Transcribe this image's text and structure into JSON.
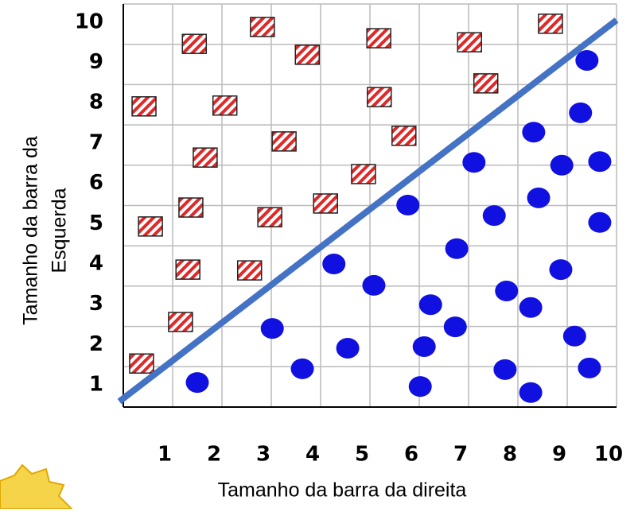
{
  "chart_data": {
    "type": "scatter",
    "x_label": "Tamanho da barra da direita",
    "y_label_lines": [
      "Tamanho da barra da",
      "Esquerda"
    ],
    "xlim": [
      0,
      10
    ],
    "ylim": [
      0,
      10
    ],
    "xticks": [
      1,
      2,
      3,
      4,
      5,
      6,
      7,
      8,
      9,
      10
    ],
    "yticks": [
      1,
      2,
      3,
      4,
      5,
      6,
      7,
      8,
      9,
      10
    ],
    "grid": true,
    "series": [
      {
        "marker": "square",
        "color": "#e02828",
        "x": [
          0.37,
          1.16,
          1.31,
          2.56,
          0.55,
          1.37,
          2.97,
          4.1,
          1.66,
          3.26,
          4.87,
          5.69,
          0.42,
          2.06,
          5.19,
          7.35,
          1.44,
          3.73,
          5.18,
          7.02,
          2.82,
          8.66
        ],
        "values": [
          1.08,
          2.11,
          3.41,
          3.39,
          4.48,
          4.95,
          4.71,
          5.05,
          6.19,
          6.59,
          5.78,
          6.73,
          7.46,
          7.48,
          7.69,
          8.03,
          9.01,
          8.74,
          9.15,
          9.05,
          9.43,
          9.51
        ]
      },
      {
        "marker": "circle",
        "color": "#1010e0",
        "x": [
          1.5,
          3.02,
          3.63,
          4.27,
          4.55,
          5.08,
          5.77,
          6.02,
          6.1,
          6.23,
          6.73,
          6.76,
          7.11,
          7.52,
          7.77,
          7.74,
          8.26,
          8.26,
          8.32,
          8.42,
          8.87,
          8.89,
          9.15,
          9.27,
          9.4,
          9.45,
          9.66,
          9.66
        ],
        "values": [
          0.61,
          1.95,
          0.95,
          3.55,
          1.46,
          3.02,
          5.01,
          0.51,
          1.5,
          2.54,
          1.99,
          3.93,
          6.07,
          4.75,
          2.88,
          0.93,
          2.47,
          0.36,
          6.82,
          5.19,
          3.41,
          6.0,
          1.76,
          7.3,
          8.6,
          0.97,
          6.09,
          4.58
        ]
      },
      {
        "marker": "line",
        "color": "#4472c4",
        "x": [
          -0.08,
          10
        ],
        "values": [
          0.14,
          9.6
        ]
      }
    ]
  }
}
